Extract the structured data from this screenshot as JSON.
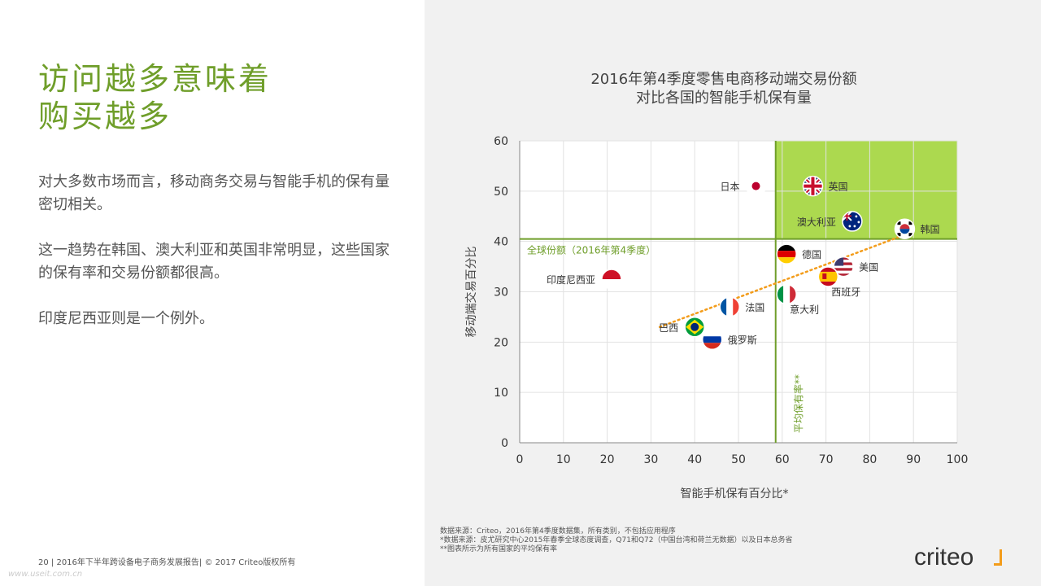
{
  "left": {
    "headline_line1": "访问越多意味着",
    "headline_line2": "购买越多",
    "para1": "对大多数市场而言，移动商务交易与智能手机的保有量密切相关。",
    "para2": "这一趋势在韩国、澳大利亚和英国非常明显，这些国家的保有率和交易份额都很高。",
    "para3": "印度尼西亚则是一个例外。",
    "footer": "20 | 2016年下半年跨设备电子商务发展报告| © 2017 Criteo版权所有",
    "watermark": "www.useit.com.cn"
  },
  "chart_title_line1": "2016年第4季度零售电商移动端交易份额",
  "chart_title_line2": "对比各国的智能手机保有量",
  "notes": {
    "line1": "数据来源：Criteo，2016年第4季度数据集，所有类别，不包括应用程序",
    "line2": "*数据来源：皮尤研究中心2015年春季全球态度调查，Q71和Q72（中国台湾和荷兰无数据）以及日本总务省",
    "line3": "**图表所示为所有国家的平均保有率"
  },
  "logo": {
    "text": "criteo",
    "accent": "#f39c1a"
  },
  "colors": {
    "green": "#6f9e2a",
    "highlight": "#acd94f",
    "trend": "#f39c1a"
  },
  "chart_data": {
    "type": "scatter",
    "xlabel": "智能手机保有百分比*",
    "ylabel": "移动端交易百分比",
    "xlim": [
      0,
      100
    ],
    "ylim": [
      0,
      60
    ],
    "xticks": [
      "0",
      "10",
      "20",
      "30",
      "40",
      "50",
      "60",
      "70",
      "80",
      "90",
      "100"
    ],
    "yticks": [
      "0",
      "10",
      "20",
      "30",
      "40",
      "50",
      "60"
    ],
    "grid": true,
    "reference_lines": {
      "horizontal": {
        "y": 40.5,
        "label": "全球份额（2016年第4季度）"
      },
      "vertical": {
        "x": 58.5,
        "label": "平均保有率**"
      }
    },
    "highlight_region": {
      "x": [
        58.5,
        100
      ],
      "y": [
        40.5,
        60
      ]
    },
    "trendline": {
      "x": [
        32,
        87
      ],
      "y": [
        23,
        41
      ]
    },
    "points": [
      {
        "label": "日本",
        "x": 54,
        "y": 51,
        "flag": "japan-flag",
        "label_side": "left"
      },
      {
        "label": "英国",
        "x": 67,
        "y": 51,
        "flag": "uk-flag",
        "label_side": "right"
      },
      {
        "label": "澳大利亚",
        "x": 76,
        "y": 44,
        "flag": "australia-flag",
        "label_side": "left"
      },
      {
        "label": "韩国",
        "x": 88,
        "y": 42.5,
        "flag": "korea-flag",
        "label_side": "right"
      },
      {
        "label": "德国",
        "x": 61,
        "y": 37.5,
        "flag": "germany-flag",
        "label_side": "right"
      },
      {
        "label": "美国",
        "x": 74,
        "y": 35,
        "flag": "usa-flag",
        "label_side": "right"
      },
      {
        "label": "西班牙",
        "x": 70.5,
        "y": 33,
        "flag": "spain-flag",
        "label_side": "below-right"
      },
      {
        "label": "印度尼西亚",
        "x": 21,
        "y": 32.5,
        "flag": "indonesia-flag",
        "label_side": "left"
      },
      {
        "label": "意大利",
        "x": 61,
        "y": 29.5,
        "flag": "italy-flag",
        "label_side": "below-right"
      },
      {
        "label": "法国",
        "x": 48,
        "y": 27,
        "flag": "france-flag",
        "label_side": "right"
      },
      {
        "label": "巴西",
        "x": 40,
        "y": 23,
        "flag": "brazil-flag",
        "label_side": "left"
      },
      {
        "label": "俄罗斯",
        "x": 44,
        "y": 20.5,
        "flag": "russia-flag",
        "label_side": "right"
      }
    ]
  }
}
